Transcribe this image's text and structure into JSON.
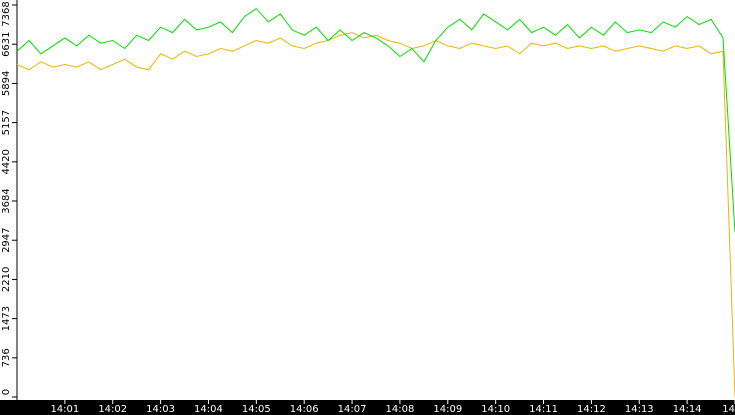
{
  "chart_data": {
    "type": "line",
    "categories": [
      null,
      null,
      null,
      null,
      "14:01",
      null,
      null,
      null,
      "14:02",
      null,
      null,
      null,
      "14:03",
      null,
      null,
      null,
      "14:04",
      null,
      null,
      null,
      "14:05",
      null,
      null,
      null,
      "14:06",
      null,
      null,
      null,
      "14:07",
      null,
      null,
      null,
      "14:08",
      null,
      null,
      null,
      "14:09",
      null,
      null,
      null,
      "14:10",
      null,
      null,
      null,
      "14:11",
      null,
      null,
      null,
      "14:12",
      null,
      null,
      null,
      "14:13",
      null,
      null,
      null,
      "14:14",
      null,
      null,
      null,
      "14"
    ],
    "series": [
      {
        "color": "#00e000",
        "values": [
          6500,
          6700,
          6450,
          6600,
          6750,
          6600,
          6800,
          6650,
          6700,
          6550,
          6800,
          6700,
          6950,
          6850,
          7100,
          6900,
          6950,
          7050,
          6850,
          7150,
          7300,
          7050,
          7200,
          6900,
          6800,
          6950,
          6700,
          6900,
          6700,
          6850,
          6750,
          6600,
          6400,
          6550,
          6300,
          6700,
          6950,
          7100,
          6900,
          7200,
          7050,
          6900,
          7100,
          6850,
          6950,
          6800,
          7000,
          6750,
          6950,
          6800,
          7050,
          6850,
          6900,
          6850,
          7050,
          6950,
          7150,
          7000,
          7100,
          6750,
          3100
        ]
      },
      {
        "color": "#f0b400",
        "values": [
          6250,
          6150,
          6300,
          6200,
          6250,
          6200,
          6300,
          6150,
          6250,
          6350,
          6200,
          6150,
          6450,
          6350,
          6500,
          6400,
          6450,
          6550,
          6500,
          6600,
          6700,
          6650,
          6750,
          6600,
          6550,
          6650,
          6700,
          6800,
          6850,
          6750,
          6800,
          6700,
          6650,
          6550,
          6600,
          6700,
          6600,
          6550,
          6650,
          6600,
          6550,
          6600,
          6450,
          6650,
          6600,
          6650,
          6550,
          6600,
          6550,
          6600,
          6500,
          6550,
          6600,
          6550,
          6500,
          6600,
          6550,
          6600,
          6450,
          6500,
          0
        ]
      }
    ],
    "ylim": [
      0,
      7368
    ],
    "yticks": [
      0,
      736,
      1473,
      2210,
      2947,
      3684,
      4420,
      5157,
      5894,
      6631,
      7368
    ]
  }
}
